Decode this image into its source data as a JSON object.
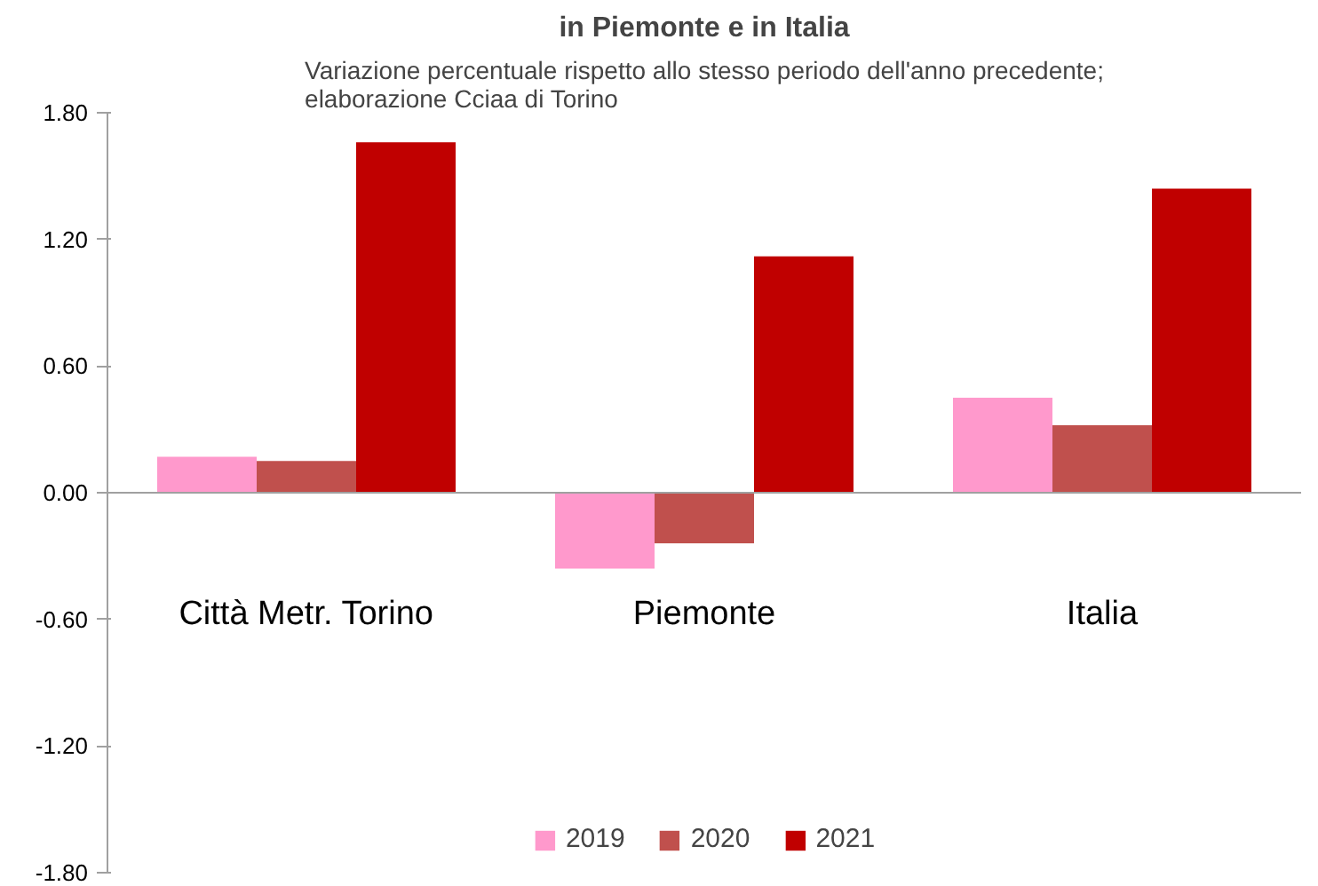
{
  "chart_data": {
    "type": "bar",
    "title": "in Piemonte e in Italia",
    "subtitle": "Variazione percentuale rispetto allo stesso periodo dell'anno precedente;\nelaborazione Cciaa di Torino",
    "categories": [
      "Città Metr. Torino",
      "Piemonte",
      "Italia"
    ],
    "series": [
      {
        "name": "2019",
        "color": "#ff99cc",
        "values": [
          0.17,
          -0.36,
          0.45
        ]
      },
      {
        "name": "2020",
        "color": "#c0504d",
        "values": [
          0.15,
          -0.24,
          0.32
        ]
      },
      {
        "name": "2021",
        "color": "#c00000",
        "values": [
          1.66,
          1.12,
          1.44
        ]
      }
    ],
    "ylim": [
      -1.8,
      1.8
    ],
    "yticks": [
      {
        "value": -1.8,
        "label": "-1.80"
      },
      {
        "value": -1.2,
        "label": "-1.20"
      },
      {
        "value": -0.6,
        "label": "-0.60"
      },
      {
        "value": 0,
        "label": "0.00"
      },
      {
        "value": 0.6,
        "label": "0.60"
      },
      {
        "value": 1.2,
        "label": "1.20"
      },
      {
        "value": 1.8,
        "label": "1.80"
      }
    ],
    "legend": "bottom"
  }
}
